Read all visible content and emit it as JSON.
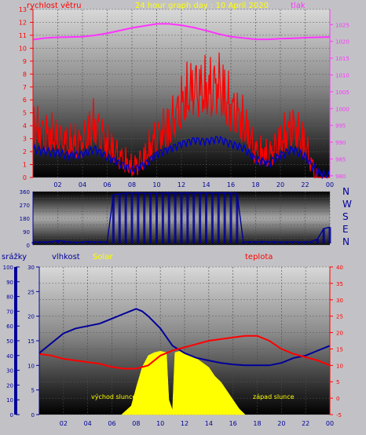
{
  "header": {
    "left_label": "rychlost větru",
    "center_title": "24 hour graph day : 10 April 2020",
    "right_label": "tlak"
  },
  "direction_labels": [
    "N",
    "W",
    "S",
    "E",
    "N"
  ],
  "bottom_header": {
    "srazky": "srážky",
    "vlhkost": "vlhkost",
    "solar": "Solar",
    "teplota": "teplota"
  },
  "annotations": {
    "sunrise": "východ slunce",
    "sunset": "západ slunce"
  },
  "colors": {
    "wind": "#ff0000",
    "wind_avg": "#0000cc",
    "pressure": "#ff33ff",
    "direction": "#000099",
    "humidity": "#000099",
    "temperature": "#ff0000",
    "solar": "#ffff00",
    "rain_axis": "#000099",
    "title": "#ffff00"
  },
  "x_ticks": [
    "02",
    "04",
    "06",
    "08",
    "10",
    "12",
    "14",
    "16",
    "18",
    "20",
    "22",
    "00"
  ],
  "chart_data": [
    {
      "type": "line",
      "title": "24 hour graph day : 10 April 2020",
      "x_range_hours": [
        0,
        24
      ],
      "left_axis": {
        "label": "rychlost větru",
        "ticks": [
          "0",
          "1",
          "2",
          "3",
          "4",
          "5",
          "6",
          "7",
          "8",
          "9",
          "10",
          "11",
          "12",
          "13"
        ],
        "ylim": [
          0,
          13
        ]
      },
      "right_axis": {
        "label": "tlak",
        "ticks": [
          "980",
          "985",
          "990",
          "995",
          "1000",
          "1005",
          "1010",
          "1015",
          "1020",
          "1025"
        ],
        "ylim": [
          979.5,
          1029.5
        ]
      },
      "series": [
        {
          "name": "",
          "axis": "right",
          "x": [
            0,
            1,
            2,
            3,
            4,
            5,
            6,
            7,
            8,
            9,
            10,
            11,
            12,
            13,
            14,
            15,
            16,
            17,
            18,
            19,
            20,
            21,
            22,
            23,
            24
          ],
          "values": [
            1020.5,
            1021,
            1021.2,
            1021.3,
            1021.4,
            1021.8,
            1022.4,
            1023.2,
            1024,
            1024.6,
            1025.2,
            1025.2,
            1024.8,
            1024.1,
            1023.2,
            1022.2,
            1021.4,
            1021,
            1020.6,
            1020.6,
            1020.8,
            1020.9,
            1021.1,
            1021.2,
            1021.3
          ]
        },
        {
          "name": "",
          "axis": "left",
          "x": [
            0,
            1,
            2,
            3,
            4,
            5,
            6,
            7,
            8,
            9,
            10,
            11,
            12,
            13,
            14,
            15,
            16,
            17,
            18,
            19,
            20,
            21,
            22,
            23,
            24
          ],
          "values": [
            3.7,
            3.2,
            3,
            2.6,
            2.8,
            3.9,
            2.6,
            1.9,
            1.2,
            1.8,
            3.1,
            3.6,
            5,
            6,
            5.7,
            6.2,
            4.8,
            3.9,
            2.2,
            1.9,
            2.8,
            3.7,
            2.6,
            0.4,
            0.1
          ]
        },
        {
          "name": "",
          "axis": "left",
          "x": [
            0,
            1,
            2,
            3,
            4,
            5,
            6,
            7,
            8,
            9,
            10,
            11,
            12,
            13,
            14,
            15,
            16,
            17,
            18,
            19,
            20,
            21,
            22,
            23,
            24
          ],
          "values": [
            2.2,
            2,
            1.9,
            1.7,
            1.8,
            2.2,
            1.6,
            1.1,
            0.6,
            1,
            1.8,
            2.2,
            2.6,
            2.9,
            2.8,
            3,
            2.6,
            2.3,
            1.4,
            1.1,
            1.7,
            2.2,
            1.6,
            0.4,
            0.1
          ]
        }
      ]
    },
    {
      "type": "scatter",
      "x_range_hours": [
        0,
        24
      ],
      "left_axis": {
        "ticks": [
          "0",
          "45",
          "90",
          "135",
          "180",
          "225",
          "270",
          "315",
          "360"
        ],
        "ylim": [
          0,
          360
        ]
      },
      "right_axis_labels": [
        "N",
        "W",
        "S",
        "E",
        "N"
      ],
      "series": [
        {
          "name": "",
          "x": [
            0,
            0.5,
            1,
            1.5,
            2,
            2.5,
            3,
            3.5,
            4,
            4.5,
            5,
            5.5,
            6,
            6.5,
            7,
            7.5,
            8,
            8.5,
            9,
            9.5,
            10,
            10.5,
            11,
            11.5,
            12,
            12.5,
            13,
            13.5,
            14,
            14.5,
            15,
            15.5,
            16,
            16.5,
            17,
            17.5,
            18,
            18.5,
            19,
            19.5,
            20,
            20.5,
            21,
            21.5,
            22,
            22.5,
            23,
            23.5,
            24
          ],
          "values": [
            20,
            20,
            20,
            22,
            30,
            25,
            20,
            18,
            20,
            24,
            20,
            22,
            20,
            340,
            345,
            350,
            350,
            352,
            350,
            350,
            348,
            350,
            352,
            350,
            350,
            352,
            350,
            352,
            350,
            352,
            350,
            352,
            350,
            348,
            20,
            22,
            20,
            24,
            20,
            22,
            20,
            20,
            22,
            20,
            20,
            22,
            40,
            110,
            120
          ]
        }
      ]
    },
    {
      "type": "line",
      "x_range_hours": [
        0,
        24
      ],
      "axes": {
        "srazky": {
          "label": "srážky",
          "ticks": [
            "0",
            "10",
            "20",
            "30",
            "40",
            "50",
            "60",
            "70",
            "80",
            "90",
            "100"
          ],
          "ylim": [
            0,
            100
          ]
        },
        "vlhkost": {
          "label": "vlhkost",
          "ticks": [
            "0",
            "5",
            "10",
            "15",
            "20",
            "25",
            "30"
          ],
          "ylim": [
            0,
            30
          ]
        },
        "teplota": {
          "label": "teplota",
          "ticks": [
            "-5",
            "0",
            "5",
            "10",
            "15",
            "20",
            "25",
            "30",
            "35",
            "40"
          ],
          "ylim": [
            -5,
            40
          ]
        }
      },
      "series": [
        {
          "name": "vlhkost",
          "axis": "vlhkost",
          "x": [
            0,
            1,
            2,
            3,
            4,
            5,
            6,
            7,
            7.5,
            8,
            8.5,
            9,
            10,
            11,
            12,
            13,
            14,
            15,
            16,
            17,
            18,
            19,
            20,
            21,
            22,
            23,
            24
          ],
          "values": [
            12.5,
            14.5,
            16.5,
            17.5,
            18,
            18.5,
            19.5,
            20.5,
            21,
            21.5,
            21,
            20,
            17.5,
            14,
            12.5,
            11.5,
            11,
            10.5,
            10.2,
            10,
            10,
            10,
            10.5,
            11.5,
            12,
            13,
            14
          ]
        },
        {
          "name": "teplota",
          "axis": "teplota",
          "x": [
            0,
            1,
            2,
            3,
            4,
            5,
            6,
            7,
            8,
            9,
            10,
            11,
            12,
            13,
            14,
            15,
            16,
            17,
            18,
            19,
            20,
            21,
            22,
            23,
            24
          ],
          "values": [
            13.5,
            13,
            12,
            11.5,
            11,
            10.5,
            9.5,
            9,
            9,
            10,
            13,
            14.5,
            15.5,
            16.5,
            17.5,
            18,
            18.5,
            19,
            19,
            17.5,
            15,
            13.5,
            12.5,
            11.5,
            10
          ]
        },
        {
          "name": "Solar",
          "axis": "srazky",
          "x": [
            6.8,
            7.2,
            7.6,
            8,
            8.5,
            9,
            9.5,
            10,
            10.5,
            10.7,
            11,
            11.2,
            11.6,
            12,
            12.5,
            13,
            13.5,
            14,
            14.5,
            15,
            15.5,
            16,
            16.5,
            17
          ],
          "values": [
            0,
            3,
            6,
            18,
            32,
            40,
            42,
            43,
            42,
            10,
            3,
            42,
            43,
            42,
            40,
            38,
            35,
            32,
            26,
            22,
            16,
            10,
            4,
            0
          ]
        }
      ]
    }
  ]
}
